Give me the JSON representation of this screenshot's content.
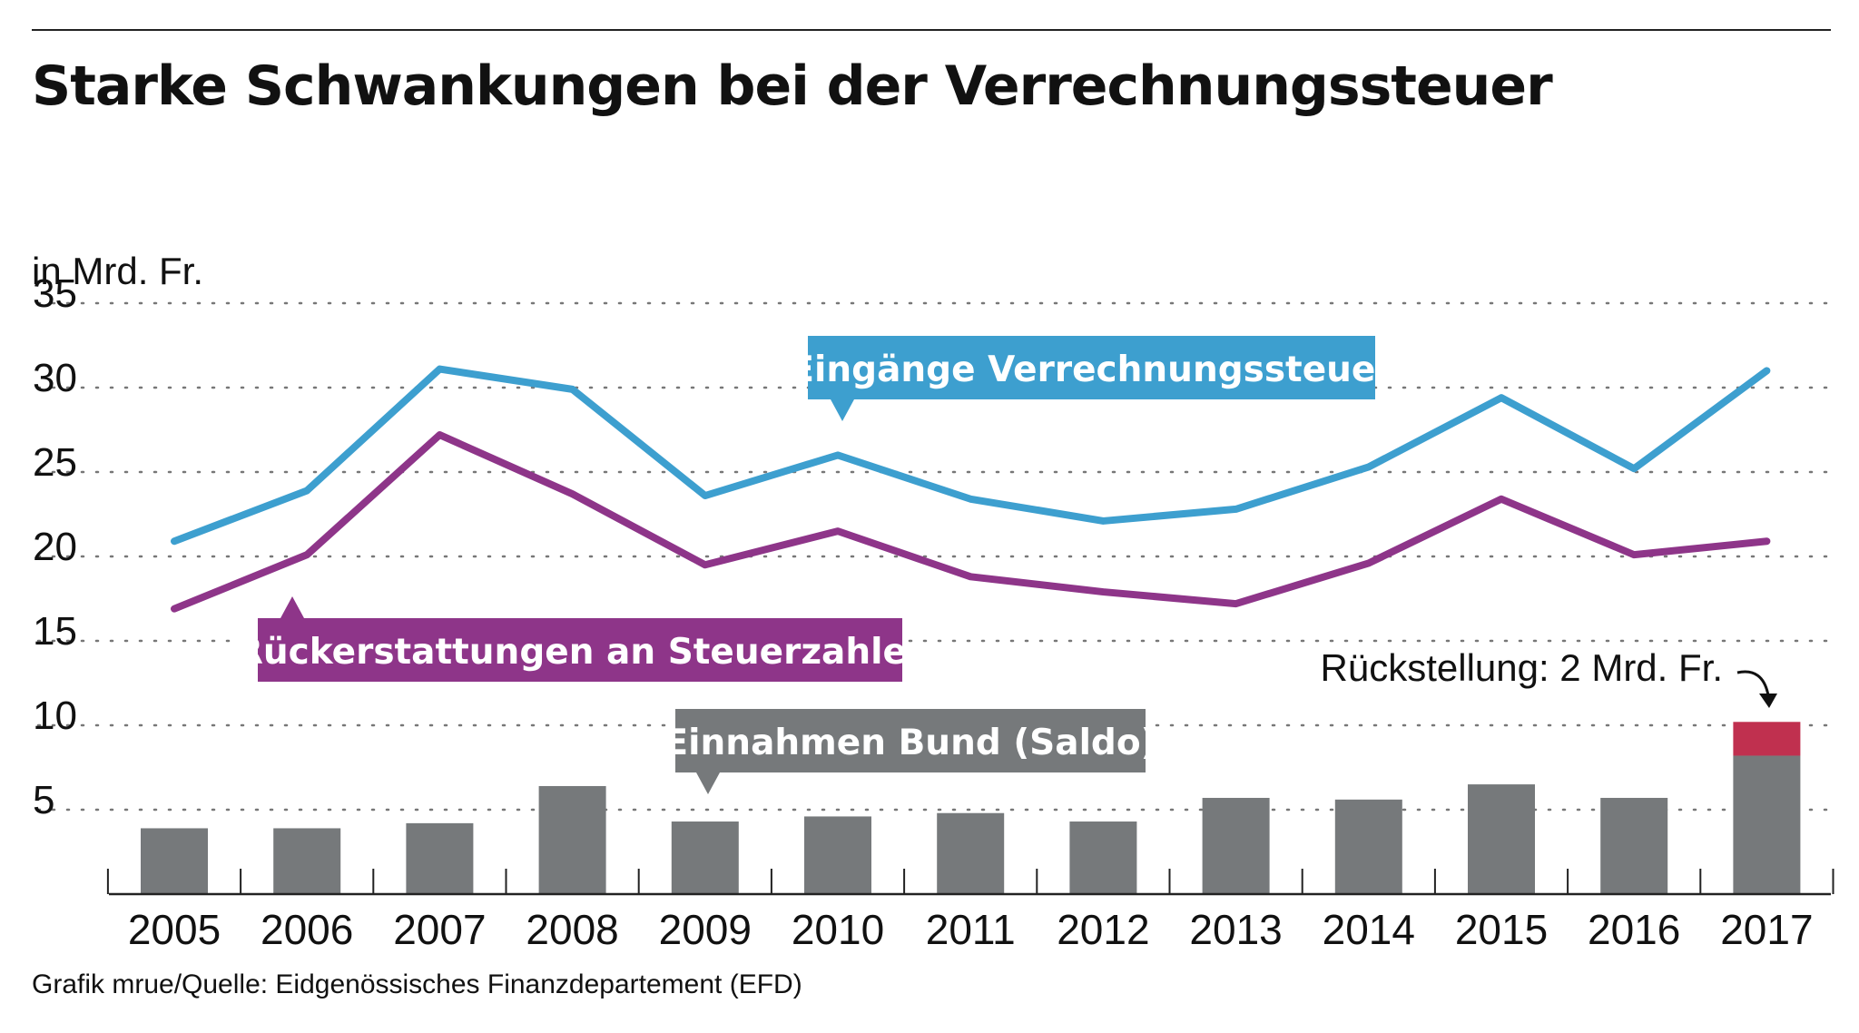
{
  "title": "Starke Schwankungen bei der Verrechnungssteuer",
  "unit_label": "in Mrd. Fr.",
  "source": "Grafik mrue/Quelle: Eidgenössisches Finanzdepartement (EFD)",
  "colors": {
    "eingaenge": "#3d9fcf",
    "rueckerstattungen": "#8e3589",
    "einnahmen": "#76797b",
    "rueckstellung": "#c0304f",
    "grid": "#777777",
    "text": "#111111"
  },
  "chart_data": {
    "type": "bar",
    "categories": [
      "2005",
      "2006",
      "2007",
      "2008",
      "2009",
      "2010",
      "2011",
      "2012",
      "2013",
      "2014",
      "2015",
      "2016",
      "2017"
    ],
    "ylim": [
      0,
      35
    ],
    "yticks": [
      5,
      10,
      15,
      20,
      25,
      30,
      35
    ],
    "ylabel": "in Mrd. Fr.",
    "grid": "dotted horizontal",
    "series": [
      {
        "name": "Eingänge Verrechnungssteuer",
        "type": "line",
        "values": [
          20.9,
          23.9,
          31.1,
          29.9,
          23.6,
          26.0,
          23.4,
          22.1,
          22.8,
          25.3,
          29.4,
          25.2,
          31.0
        ]
      },
      {
        "name": "Rückerstattungen an Steuerzahler",
        "type": "line",
        "values": [
          16.9,
          20.1,
          27.2,
          23.7,
          19.5,
          21.5,
          18.8,
          17.9,
          17.2,
          19.6,
          23.4,
          20.1,
          20.9
        ]
      },
      {
        "name": "Einnahmen Bund (Saldo)",
        "type": "bar",
        "values": [
          3.9,
          3.9,
          4.2,
          6.4,
          4.3,
          4.6,
          4.8,
          4.3,
          5.7,
          5.6,
          6.5,
          5.7,
          8.2
        ]
      }
    ],
    "annotations": [
      {
        "text": "Rückstellung: 2 Mrd. Fr.",
        "category": "2017",
        "value": 2.0
      }
    ]
  }
}
